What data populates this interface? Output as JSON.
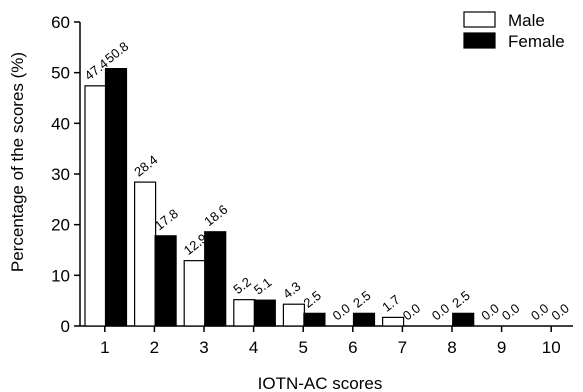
{
  "chart_data": {
    "type": "bar",
    "categories": [
      "1",
      "2",
      "3",
      "4",
      "5",
      "6",
      "7",
      "8",
      "9",
      "10"
    ],
    "series": [
      {
        "name": "Male",
        "color": "#ffffff",
        "values": [
          47.4,
          28.4,
          12.9,
          5.2,
          4.3,
          0.0,
          1.7,
          0.0,
          0.0,
          0.0
        ],
        "labels": [
          "47.4",
          "28.4",
          "12.9",
          "5.2",
          "4.3",
          "0.0",
          "1.7",
          "0.0",
          "0.0",
          "0.0"
        ]
      },
      {
        "name": "Female",
        "color": "#000000",
        "values": [
          50.8,
          17.8,
          18.6,
          5.1,
          2.5,
          2.5,
          0.0,
          2.5,
          0.0,
          0.0
        ],
        "labels": [
          "50.8",
          "17.8",
          "18.6",
          "5.1",
          "2.5",
          "2.5",
          "0.0",
          "2.5",
          "0.0",
          "0.0"
        ]
      }
    ],
    "xlabel": "IOTN-AC scores",
    "ylabel": "Percentage of the scores (%)",
    "ylim": [
      0,
      60
    ],
    "yticks": [
      0,
      10,
      20,
      30,
      40,
      50,
      60
    ],
    "grid": false,
    "legend": "top-right"
  }
}
